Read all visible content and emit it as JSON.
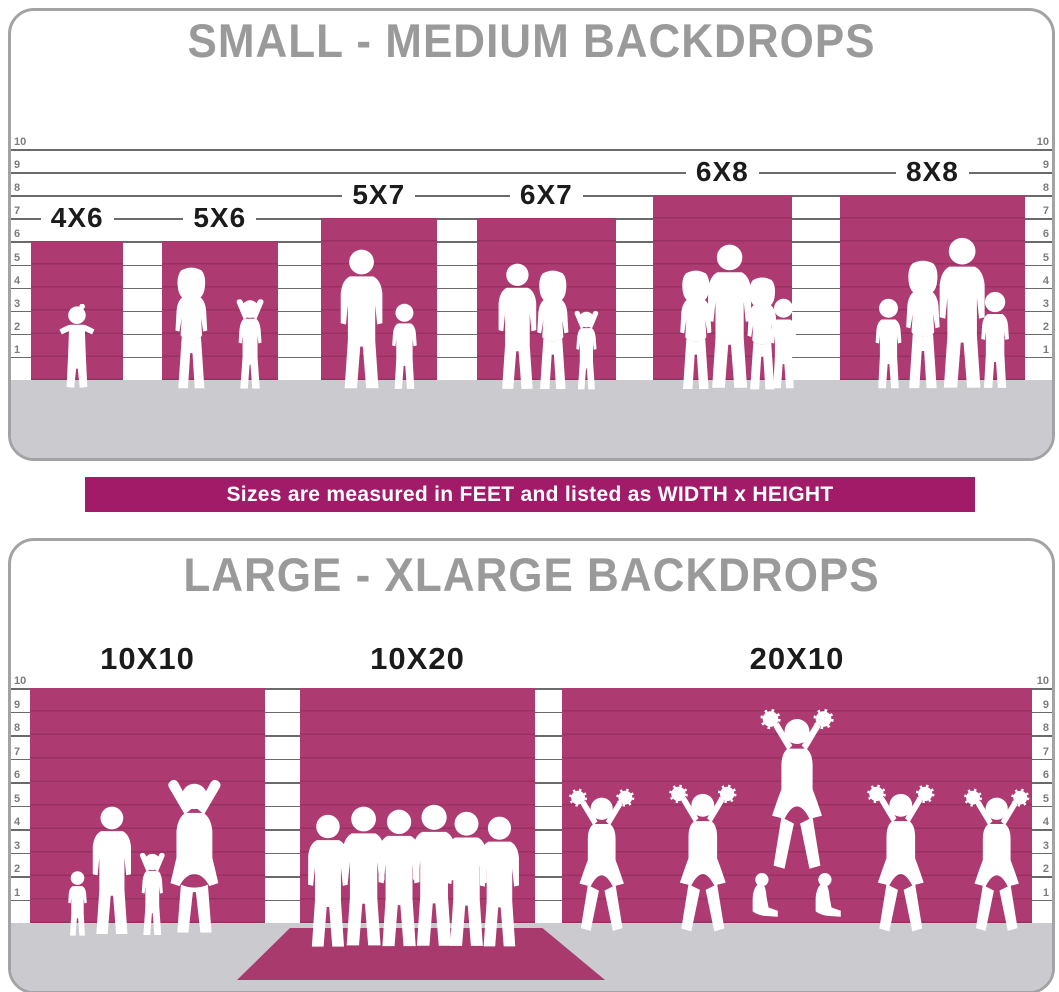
{
  "banner": {
    "text": "Sizes are measured in FEET and listed as WIDTH x HEIGHT"
  },
  "panels": [
    {
      "title": "SMALL - MEDIUM BACKDROPS",
      "ruler_labels": [
        "10",
        "9",
        "8",
        "7",
        "6",
        "5",
        "4",
        "3",
        "2",
        "1"
      ],
      "backdrops": [
        {
          "label": "4X6",
          "width_ft": 4,
          "height_ft": 6,
          "figures": [
            {
              "type": "toddler",
              "rel_x": 0.5,
              "height_ft": 3.8
            }
          ]
        },
        {
          "label": "5X6",
          "width_ft": 5,
          "height_ft": 6,
          "figures": [
            {
              "type": "woman",
              "rel_x": 0.25,
              "height_ft": 5.4
            },
            {
              "type": "childup",
              "rel_x": 0.76,
              "height_ft": 4.2
            }
          ]
        },
        {
          "label": "5X7",
          "width_ft": 5,
          "height_ft": 7,
          "figures": [
            {
              "type": "man",
              "rel_x": 0.35,
              "height_ft": 6.2
            },
            {
              "type": "child",
              "rel_x": 0.72,
              "height_ft": 3.9
            }
          ]
        },
        {
          "label": "6X7",
          "width_ft": 6,
          "height_ft": 7,
          "figures": [
            {
              "type": "man",
              "rel_x": 0.29,
              "height_ft": 5.6
            },
            {
              "type": "woman",
              "rel_x": 0.55,
              "height_ft": 5.3
            },
            {
              "type": "childup",
              "rel_x": 0.79,
              "height_ft": 3.7
            }
          ]
        },
        {
          "label": "6X8",
          "width_ft": 6,
          "height_ft": 8,
          "figures": [
            {
              "type": "woman",
              "rel_x": 0.31,
              "height_ft": 5.3
            },
            {
              "type": "man",
              "rel_x": 0.55,
              "height_ft": 6.4
            },
            {
              "type": "woman",
              "rel_x": 0.79,
              "height_ft": 5.0
            },
            {
              "type": "child",
              "rel_x": 0.94,
              "height_ft": 4.1
            }
          ]
        },
        {
          "label": "8X8",
          "width_ft": 8,
          "height_ft": 8,
          "figures": [
            {
              "type": "child",
              "rel_x": 0.26,
              "height_ft": 4.1
            },
            {
              "type": "woman",
              "rel_x": 0.45,
              "height_ft": 5.7
            },
            {
              "type": "man",
              "rel_x": 0.66,
              "height_ft": 6.7
            },
            {
              "type": "child",
              "rel_x": 0.84,
              "height_ft": 4.4
            }
          ]
        }
      ]
    },
    {
      "title": "LARGE - XLARGE BACKDROPS",
      "ruler_labels": [
        "10",
        "9",
        "8",
        "7",
        "6",
        "5",
        "4",
        "3",
        "2",
        "1"
      ],
      "backdrops": [
        {
          "label": "10X10",
          "width_ft": 10,
          "height_ft": 10,
          "figures": [
            {
              "type": "child",
              "rel_x": 0.2,
              "height_ft": 2.9
            },
            {
              "type": "man",
              "rel_x": 0.35,
              "height_ft": 5.6
            },
            {
              "type": "childup",
              "rel_x": 0.52,
              "height_ft": 3.8
            },
            {
              "type": "up",
              "rel_x": 0.7,
              "height_ft": 7.0
            }
          ]
        },
        {
          "label": "10X20",
          "width_ft": 10,
          "height_ft": 10,
          "figures": [
            {
              "type": "man",
              "rel_x": 0.12,
              "height_ft": 5.8,
              "lift_ft": -0.5
            },
            {
              "type": "man",
              "rel_x": 0.27,
              "height_ft": 6.1,
              "lift_ft": -0.5
            },
            {
              "type": "man",
              "rel_x": 0.42,
              "height_ft": 6.0,
              "lift_ft": -0.5
            },
            {
              "type": "man",
              "rel_x": 0.57,
              "height_ft": 6.2,
              "lift_ft": -0.5
            },
            {
              "type": "man",
              "rel_x": 0.71,
              "height_ft": 5.9,
              "lift_ft": -0.5
            },
            {
              "type": "man",
              "rel_x": 0.85,
              "height_ft": 5.7,
              "lift_ft": -0.5
            }
          ]
        },
        {
          "label": "20X10",
          "width_ft": 20,
          "height_ft": 10,
          "figures": [
            {
              "type": "cheer",
              "rel_x": 0.085,
              "height_ft": 6.5
            },
            {
              "type": "cheer",
              "rel_x": 0.3,
              "height_ft": 6.7
            },
            {
              "type": "sit",
              "rel_x": 0.43,
              "height_ft": 3.1
            },
            {
              "type": "sit",
              "rel_x": 0.565,
              "height_ft": 3.1
            },
            {
              "type": "cheer",
              "rel_x": 0.5,
              "height_ft": 7.3,
              "lift_ft": 2.6
            },
            {
              "type": "cheer",
              "rel_x": 0.72,
              "height_ft": 6.7
            },
            {
              "type": "cheer",
              "rel_x": 0.925,
              "height_ft": 6.5
            }
          ]
        }
      ]
    }
  ],
  "colors": {
    "backdrop_magenta": "#ad3a70",
    "banner_magenta": "#a21b69",
    "floor_gray": "#cbcbcf",
    "title_gray": "#9a9a9a",
    "label_black": "#1b1b1b",
    "silhouette_white": "#ffffff"
  },
  "chart_data": {
    "type": "table",
    "title": "Backdrop sizes measured in feet, listed as WIDTH x HEIGHT",
    "scale_ft": [
      1,
      2,
      3,
      4,
      5,
      6,
      7,
      8,
      9,
      10
    ],
    "groups": [
      {
        "name": "SMALL - MEDIUM BACKDROPS",
        "sizes": [
          "4X6",
          "5X6",
          "5X7",
          "6X7",
          "6X8",
          "8X8"
        ]
      },
      {
        "name": "LARGE - XLARGE BACKDROPS",
        "sizes": [
          "10X10",
          "10X20",
          "20X10"
        ]
      }
    ]
  }
}
